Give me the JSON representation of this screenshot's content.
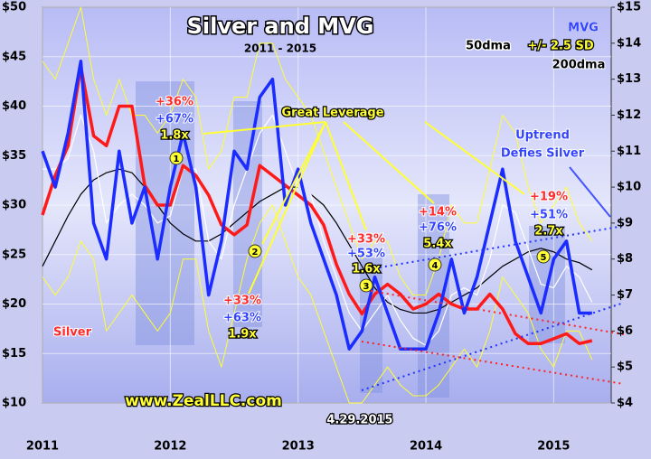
{
  "chart_data": {
    "type": "line",
    "title": "Silver and MVG",
    "subtitle": "2011 - 2015",
    "x": [
      2011.0,
      2011.1,
      2011.2,
      2011.3,
      2011.4,
      2011.5,
      2011.6,
      2011.7,
      2011.8,
      2011.9,
      2012.0,
      2012.1,
      2012.2,
      2012.3,
      2012.4,
      2012.5,
      2012.6,
      2012.7,
      2012.8,
      2012.9,
      2013.0,
      2013.1,
      2013.2,
      2013.3,
      2013.4,
      2013.5,
      2013.6,
      2013.7,
      2013.8,
      2013.9,
      2014.0,
      2014.1,
      2014.2,
      2014.3,
      2014.4,
      2014.5,
      2014.6,
      2014.7,
      2014.8,
      2014.9,
      2015.0,
      2015.1,
      2015.2,
      2015.3
    ],
    "series": [
      {
        "name": "Silver",
        "color": "#ff1a1a",
        "axis": "y",
        "values": [
          29,
          33,
          36,
          44,
          37,
          36,
          40,
          40,
          32,
          30,
          30,
          34,
          33,
          31,
          28,
          27,
          28,
          34,
          33,
          32,
          31,
          30,
          28,
          24,
          21,
          19,
          21,
          22,
          21,
          19.5,
          20,
          21,
          20,
          19.5,
          19.5,
          21,
          19.5,
          17,
          16,
          16,
          16.5,
          17,
          16,
          16.3
        ]
      },
      {
        "name": "MVG",
        "color": "#1a2cff",
        "axis": "y2",
        "values": [
          11,
          10,
          11.5,
          13.5,
          9,
          8,
          11,
          9,
          10,
          8,
          10,
          11.5,
          10,
          7,
          8.5,
          11,
          10.5,
          12.5,
          13,
          9.5,
          10.5,
          9,
          8,
          7,
          5.5,
          6,
          7.5,
          6.5,
          5.5,
          5.5,
          5.5,
          6.5,
          8,
          6.5,
          7.5,
          9,
          10.5,
          8.5,
          7.5,
          6.5,
          8,
          8.5,
          6.5,
          6.5
        ]
      },
      {
        "name": "50dma",
        "color": "#ffffff",
        "axis": "y2",
        "values": [
          10.5,
          10.5,
          10.8,
          12,
          11,
          9,
          9.5,
          9.8,
          9.5,
          9,
          9.2,
          10.5,
          10.5,
          8.5,
          8,
          9.5,
          10.5,
          11.5,
          12,
          11,
          10,
          9.8,
          8.5,
          7.5,
          6.5,
          6,
          6.5,
          7,
          6.3,
          5.8,
          5.6,
          6,
          7,
          7.2,
          7,
          8,
          9.5,
          9.3,
          8.3,
          7.3,
          7.2,
          7.8,
          7.5,
          6.8
        ]
      },
      {
        "name": "+/- 2.5 SD",
        "color": "#ffff33",
        "axis": "y2",
        "values": [
          13.5,
          13,
          14,
          15,
          13,
          12,
          13,
          12,
          12,
          11.5,
          12,
          13,
          12.5,
          10.5,
          11,
          12.5,
          12.5,
          14,
          14,
          13,
          12.5,
          12,
          11,
          10,
          9,
          8,
          8.5,
          8.5,
          7.5,
          7,
          7,
          8,
          9.5,
          9,
          9,
          10.5,
          12,
          11.5,
          10,
          9,
          9.5,
          10,
          9,
          8.5
        ],
        "lower_values": [
          7.5,
          7,
          7.5,
          8.5,
          8,
          6,
          6.5,
          7,
          6.5,
          6,
          6.5,
          8,
          8,
          6,
          5,
          6.5,
          8,
          9,
          9.5,
          8.5,
          7.5,
          7,
          6,
          5,
          4,
          4,
          4.5,
          5,
          4.5,
          4.2,
          4.2,
          4.5,
          5,
          5.5,
          5,
          6,
          7.5,
          7,
          6.5,
          5.5,
          5,
          6,
          6,
          5.2
        ]
      },
      {
        "name": "200dma",
        "color": "#000000",
        "axis": "y2",
        "values": [
          7.8,
          8.5,
          9.2,
          9.8,
          10.2,
          10.4,
          10.5,
          10.4,
          10,
          9.5,
          9,
          8.7,
          8.5,
          8.5,
          8.7,
          9,
          9.3,
          9.6,
          9.8,
          10,
          10,
          9.8,
          9.5,
          9,
          8.4,
          7.8,
          7.2,
          6.8,
          6.6,
          6.5,
          6.5,
          6.6,
          6.8,
          7,
          7.2,
          7.5,
          7.8,
          8,
          8.2,
          8.3,
          8.2,
          8,
          7.9,
          7.7
        ]
      }
    ],
    "xlim": [
      2011,
      2015.45
    ],
    "xticks": [
      2011,
      2012,
      2013,
      2014,
      2015
    ],
    "ylim": [
      10,
      50
    ],
    "yticks": [
      {
        "value": 10,
        "label": "$10"
      },
      {
        "value": 15,
        "label": "$15"
      },
      {
        "value": 20,
        "label": "$20"
      },
      {
        "value": 25,
        "label": "$25"
      },
      {
        "value": 30,
        "label": "$30"
      },
      {
        "value": 35,
        "label": "$35"
      },
      {
        "value": 40,
        "label": "$40"
      },
      {
        "value": 45,
        "label": "$45"
      },
      {
        "value": 50,
        "label": "$50"
      }
    ],
    "y2lim": [
      4,
      15
    ],
    "y2ticks": [
      {
        "value": 4,
        "label": "$4"
      },
      {
        "value": 5,
        "label": "$5"
      },
      {
        "value": 6,
        "label": "$6"
      },
      {
        "value": 7,
        "label": "$7"
      },
      {
        "value": 8,
        "label": "$8"
      },
      {
        "value": 9,
        "label": "$9"
      },
      {
        "value": 10,
        "label": "$10"
      },
      {
        "value": 11,
        "label": "$11"
      },
      {
        "value": 12,
        "label": "$12"
      },
      {
        "value": 13,
        "label": "$13"
      },
      {
        "value": 14,
        "label": "$14"
      },
      {
        "value": 15,
        "label": "$15"
      }
    ],
    "grid": true,
    "annotations": [
      "Great Leverage",
      "+36%",
      "+67%",
      "1.8x",
      "+33%",
      "+63%",
      "1.9x",
      "+33%",
      "+53%",
      "1.6x",
      "+14%",
      "+76%",
      "5.4x",
      "+19%",
      "+51%",
      "2.7x",
      "Uptrend",
      "Defies Silver",
      "4.29.2015",
      "www.ZealLLC.com"
    ],
    "markers": [
      "1",
      "2",
      "3",
      "4",
      "5"
    ]
  }
}
